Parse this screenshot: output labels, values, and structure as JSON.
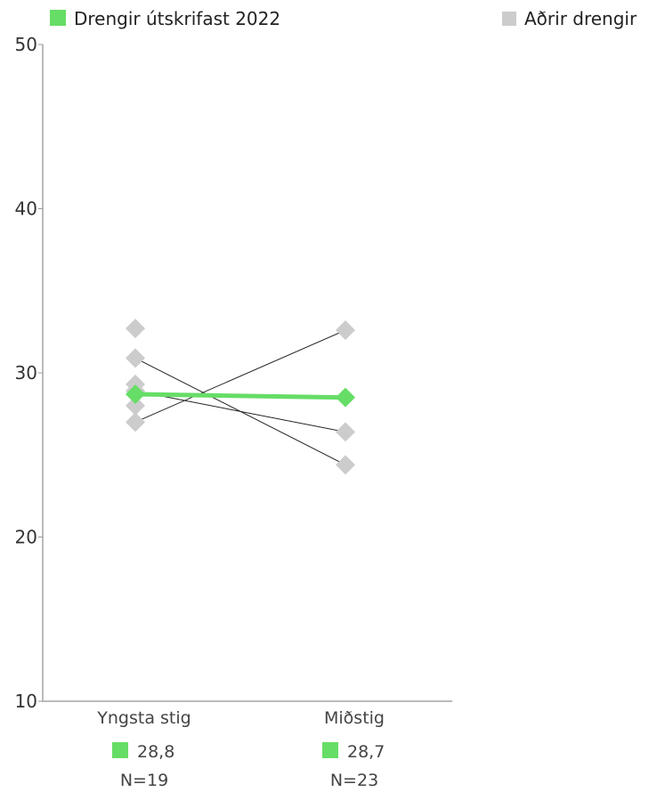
{
  "chart_data": {
    "type": "line",
    "categories": [
      "Yngsta stig",
      "Miðstig"
    ],
    "ylim": [
      10,
      50
    ],
    "yticks": [
      10,
      20,
      30,
      40,
      50
    ],
    "highlight": {
      "name": "Drengir útskrifast 2022",
      "color": "#66dd66",
      "values": [
        28.7,
        28.5
      ]
    },
    "others": {
      "name": "Aðrir drengir",
      "color": "#cccccc",
      "line_color": "#222222",
      "lines": [
        {
          "values": [
            30.9,
            24.4
          ]
        },
        {
          "values": [
            27.0,
            32.6
          ]
        },
        {
          "values": [
            28.9,
            26.4
          ]
        }
      ],
      "extra_points": [
        {
          "category": 0,
          "value": 32.7
        },
        {
          "category": 0,
          "value": 29.3
        },
        {
          "category": 0,
          "value": 28.0
        }
      ]
    },
    "category_stats": [
      {
        "label": "Yngsta stig",
        "mean": "28,8",
        "n": "N=19"
      },
      {
        "label": "Miðstig",
        "mean": "28,7",
        "n": "N=23"
      }
    ]
  }
}
